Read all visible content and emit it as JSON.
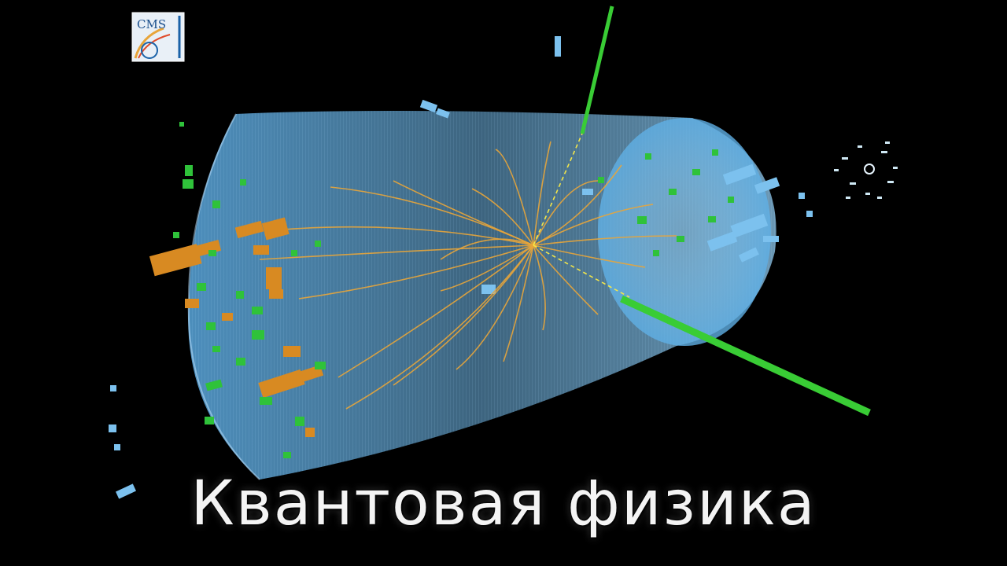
{
  "image": {
    "caption": "Квантовая физика",
    "logo_text": "CMS",
    "colors": {
      "background": "#000000",
      "detector_blue": "#6fb6e6",
      "track_orange": "#e8a53a",
      "energy_green": "#2fc23a",
      "deposit_orange": "#d88a22",
      "caption_white": "#f4f4f4"
    }
  }
}
